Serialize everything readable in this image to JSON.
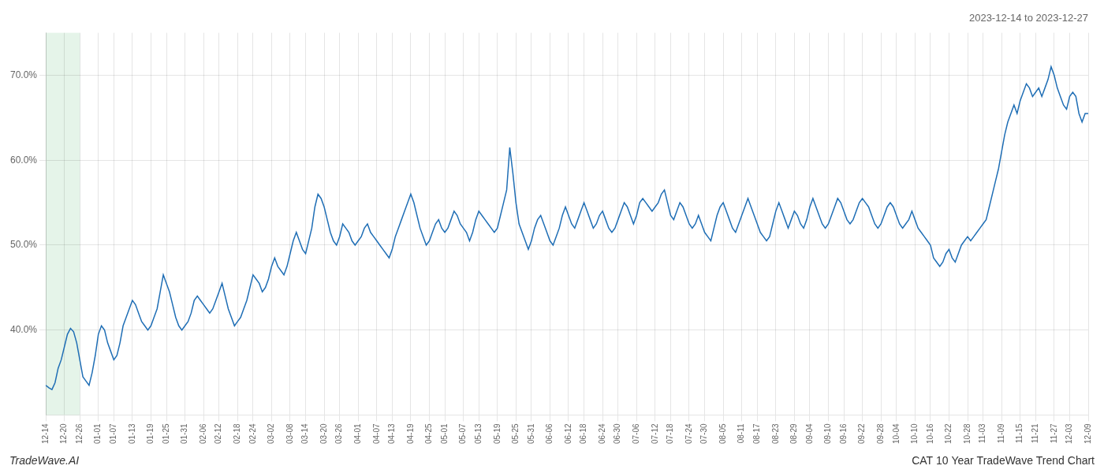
{
  "chart_data": {
    "type": "line",
    "title": "2023-12-14 to 2023-12-27",
    "annotations": [
      "TradeWave.AI",
      "CAT 10 Year TradeWave Trend Chart"
    ],
    "color": "#1f6eb5",
    "grid": true,
    "highlight": {
      "start": "12-14",
      "end": "12-26",
      "color": "#d4edda"
    },
    "ylim": [
      30,
      75
    ],
    "yticks": [
      {
        "value": 40,
        "label": "40.0%"
      },
      {
        "value": 50,
        "label": "50.0%"
      },
      {
        "value": 60,
        "label": "60.0%"
      },
      {
        "value": 70,
        "label": "70.0%"
      }
    ],
    "categories": [
      "12-14",
      null,
      null,
      null,
      null,
      null,
      "12-20",
      null,
      null,
      null,
      null,
      "12-26",
      null,
      null,
      null,
      null,
      null,
      "01-01",
      null,
      null,
      null,
      null,
      "01-07",
      null,
      null,
      null,
      null,
      null,
      "01-13",
      null,
      null,
      null,
      null,
      null,
      "01-19",
      null,
      null,
      null,
      null,
      "01-25",
      null,
      null,
      null,
      null,
      null,
      "01-31",
      null,
      null,
      null,
      null,
      null,
      "02-06",
      null,
      null,
      null,
      null,
      "02-12",
      null,
      null,
      null,
      null,
      null,
      "02-18",
      null,
      null,
      null,
      null,
      "02-24",
      null,
      null,
      null,
      null,
      null,
      "03-02",
      null,
      null,
      null,
      null,
      null,
      "03-08",
      null,
      null,
      null,
      null,
      "03-14",
      null,
      null,
      null,
      null,
      null,
      "03-20",
      null,
      null,
      null,
      null,
      "03-26",
      null,
      null,
      null,
      null,
      null,
      "04-01",
      null,
      null,
      null,
      null,
      null,
      "04-07",
      null,
      null,
      null,
      null,
      "04-13",
      null,
      null,
      null,
      null,
      null,
      "04-19",
      null,
      null,
      null,
      null,
      null,
      "04-25",
      null,
      null,
      null,
      null,
      "05-01",
      null,
      null,
      null,
      null,
      null,
      "05-07",
      null,
      null,
      null,
      null,
      "05-13",
      null,
      null,
      null,
      null,
      null,
      "05-19",
      null,
      null,
      null,
      null,
      null,
      "05-25",
      null,
      null,
      null,
      null,
      "05-31",
      null,
      null,
      null,
      null,
      null,
      "06-06",
      null,
      null,
      null,
      null,
      null,
      "06-12",
      null,
      null,
      null,
      null,
      "06-18",
      null,
      null,
      null,
      null,
      null,
      "06-24",
      null,
      null,
      null,
      null,
      "06-30",
      null,
      null,
      null,
      null,
      null,
      "07-06",
      null,
      null,
      null,
      null,
      null,
      "07-12",
      null,
      null,
      null,
      null,
      "07-18",
      null,
      null,
      null,
      null,
      null,
      "07-24",
      null,
      null,
      null,
      null,
      "07-30",
      null,
      null,
      null,
      null,
      null,
      "08-05",
      null,
      null,
      null,
      null,
      null,
      "08-11",
      null,
      null,
      null,
      null,
      "08-17",
      null,
      null,
      null,
      null,
      null,
      "08-23",
      null,
      null,
      null,
      null,
      null,
      "08-29",
      null,
      null,
      null,
      null,
      "09-04",
      null,
      null,
      null,
      null,
      null,
      "09-10",
      null,
      null,
      null,
      null,
      "09-16",
      null,
      null,
      null,
      null,
      null,
      "09-22",
      null,
      null,
      null,
      null,
      null,
      "09-28",
      null,
      null,
      null,
      null,
      "10-04",
      null,
      null,
      null,
      null,
      null,
      "10-10",
      null,
      null,
      null,
      null,
      "10-16",
      null,
      null,
      null,
      null,
      null,
      "10-22",
      null,
      null,
      null,
      null,
      null,
      "10-28",
      null,
      null,
      null,
      null,
      "11-03",
      null,
      null,
      null,
      null,
      null,
      "11-09",
      null,
      null,
      null,
      null,
      null,
      "11-15",
      null,
      null,
      null,
      null,
      "11-21",
      null,
      null,
      null,
      null,
      null,
      "11-27",
      null,
      null,
      null,
      null,
      "12-03",
      null,
      null,
      null,
      null,
      null,
      "12-09"
    ],
    "values": [
      33.5,
      33.2,
      33.0,
      33.8,
      35.5,
      36.5,
      38.0,
      39.5,
      40.2,
      39.8,
      38.5,
      36.5,
      34.5,
      34.0,
      33.5,
      35.0,
      37.0,
      39.5,
      40.5,
      40.0,
      38.5,
      37.5,
      36.5,
      37.0,
      38.5,
      40.5,
      41.5,
      42.5,
      43.5,
      43.0,
      42.0,
      41.0,
      40.5,
      40.0,
      40.5,
      41.5,
      42.5,
      44.5,
      46.5,
      45.5,
      44.5,
      43.0,
      41.5,
      40.5,
      40.0,
      40.5,
      41.0,
      42.0,
      43.5,
      44.0,
      43.5,
      43.0,
      42.5,
      42.0,
      42.5,
      43.5,
      44.5,
      45.5,
      44.0,
      42.5,
      41.5,
      40.5,
      41.0,
      41.5,
      42.5,
      43.5,
      45.0,
      46.5,
      46.0,
      45.5,
      44.5,
      45.0,
      46.0,
      47.5,
      48.5,
      47.5,
      47.0,
      46.5,
      47.5,
      49.0,
      50.5,
      51.5,
      50.5,
      49.5,
      49.0,
      50.5,
      52.0,
      54.5,
      56.0,
      55.5,
      54.5,
      53.0,
      51.5,
      50.5,
      50.0,
      51.0,
      52.5,
      52.0,
      51.5,
      50.5,
      50.0,
      50.5,
      51.0,
      52.0,
      52.5,
      51.5,
      51.0,
      50.5,
      50.0,
      49.5,
      49.0,
      48.5,
      49.5,
      51.0,
      52.0,
      53.0,
      54.0,
      55.0,
      56.0,
      55.0,
      53.5,
      52.0,
      51.0,
      50.0,
      50.5,
      51.5,
      52.5,
      53.0,
      52.0,
      51.5,
      52.0,
      53.0,
      54.0,
      53.5,
      52.5,
      52.0,
      51.5,
      50.5,
      51.5,
      53.0,
      54.0,
      53.5,
      53.0,
      52.5,
      52.0,
      51.5,
      52.0,
      53.5,
      55.0,
      56.5,
      61.5,
      58.5,
      55.0,
      52.5,
      51.5,
      50.5,
      49.5,
      50.5,
      52.0,
      53.0,
      53.5,
      52.5,
      51.5,
      50.5,
      50.0,
      51.0,
      52.0,
      53.5,
      54.5,
      53.5,
      52.5,
      52.0,
      53.0,
      54.0,
      55.0,
      54.0,
      53.0,
      52.0,
      52.5,
      53.5,
      54.0,
      53.0,
      52.0,
      51.5,
      52.0,
      53.0,
      54.0,
      55.0,
      54.5,
      53.5,
      52.5,
      53.5,
      55.0,
      55.5,
      55.0,
      54.5,
      54.0,
      54.5,
      55.0,
      56.0,
      56.5,
      55.0,
      53.5,
      53.0,
      54.0,
      55.0,
      54.5,
      53.5,
      52.5,
      52.0,
      52.5,
      53.5,
      52.5,
      51.5,
      51.0,
      50.5,
      52.0,
      53.5,
      54.5,
      55.0,
      54.0,
      53.0,
      52.0,
      51.5,
      52.5,
      53.5,
      54.5,
      55.5,
      54.5,
      53.5,
      52.5,
      51.5,
      51.0,
      50.5,
      51.0,
      52.5,
      54.0,
      55.0,
      54.0,
      53.0,
      52.0,
      53.0,
      54.0,
      53.5,
      52.5,
      52.0,
      53.0,
      54.5,
      55.5,
      54.5,
      53.5,
      52.5,
      52.0,
      52.5,
      53.5,
      54.5,
      55.5,
      55.0,
      54.0,
      53.0,
      52.5,
      53.0,
      54.0,
      55.0,
      55.5,
      55.0,
      54.5,
      53.5,
      52.5,
      52.0,
      52.5,
      53.5,
      54.5,
      55.0,
      54.5,
      53.5,
      52.5,
      52.0,
      52.5,
      53.0,
      54.0,
      53.0,
      52.0,
      51.5,
      51.0,
      50.5,
      50.0,
      48.5,
      48.0,
      47.5,
      48.0,
      49.0,
      49.5,
      48.5,
      48.0,
      49.0,
      50.0,
      50.5,
      51.0,
      50.5,
      51.0,
      51.5,
      52.0,
      52.5,
      53.0,
      54.5,
      56.0,
      57.5,
      59.0,
      61.0,
      63.0,
      64.5,
      65.5,
      66.5,
      65.5,
      67.0,
      68.0,
      69.0,
      68.5,
      67.5,
      68.0,
      68.5,
      67.5,
      68.5,
      69.5,
      71.0,
      70.0,
      68.5,
      67.5,
      66.5,
      66.0,
      67.5,
      68.0,
      67.5,
      65.5,
      64.5,
      65.5,
      65.5
    ]
  }
}
